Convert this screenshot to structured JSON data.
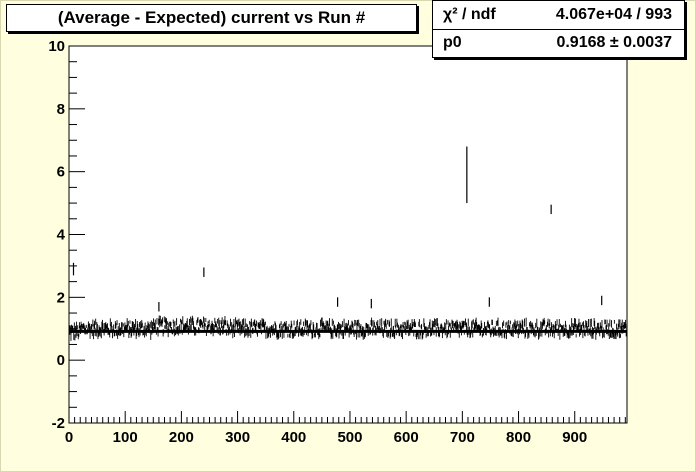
{
  "chart_data": {
    "type": "scatter",
    "title": "(Average - Expected) current vs Run #",
    "xlabel": "",
    "ylabel": "",
    "xlim": [
      0,
      993
    ],
    "ylim": [
      -2,
      10
    ],
    "x_ticks": [
      "0",
      "100",
      "200",
      "300",
      "400",
      "500",
      "600",
      "700",
      "800",
      "900"
    ],
    "y_ticks": [
      "-2",
      "0",
      "2",
      "4",
      "6",
      "8",
      "10"
    ],
    "grid": false,
    "series": [
      {
        "baseline_mean": 1.0,
        "errorbar_points": [
          {
            "x": 8,
            "y": 2.9,
            "err": 0.2
          },
          {
            "x": 240,
            "y": 2.8,
            "err": 0.15
          },
          {
            "x": 708,
            "y": 5.9,
            "err": 0.9
          },
          {
            "x": 858,
            "y": 4.8,
            "err": 0.15
          },
          {
            "x": 160,
            "y": 1.7,
            "err": 0.15
          },
          {
            "x": 478,
            "y": 1.85,
            "err": 0.15
          },
          {
            "x": 538,
            "y": 1.8,
            "err": 0.15
          },
          {
            "x": 748,
            "y": 1.85,
            "err": 0.15
          },
          {
            "x": 948,
            "y": 1.9,
            "err": 0.15
          }
        ]
      }
    ],
    "fit": {
      "type": "constant",
      "value": 0.9168,
      "x_range": [
        0,
        993
      ]
    },
    "stats": {
      "chi2_label": "χ² / ndf",
      "chi2_value": "4.067e+04 / 993",
      "p0_label": "p0",
      "p0_value": "0.9168 ± 0.0037"
    },
    "colors": {
      "background": "#ffffe0",
      "plot_background": "#ffffff",
      "data": "#000000"
    }
  }
}
